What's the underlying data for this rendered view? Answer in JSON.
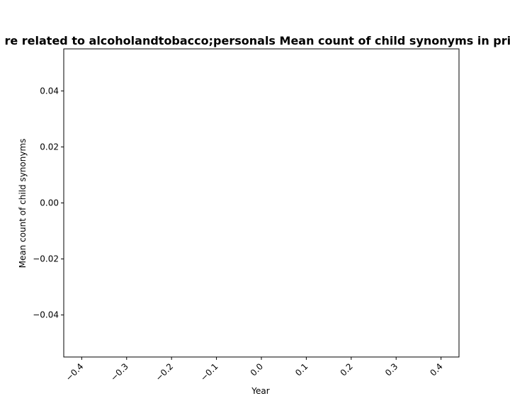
{
  "chart_data": {
    "type": "line",
    "title": "re related to alcoholandtobacco;personals Mean count of child synonyms in priv",
    "xlabel": "Year",
    "ylabel": "Mean count of child synonyms",
    "xlim": [
      -0.44,
      0.44
    ],
    "ylim": [
      -0.055,
      0.055
    ],
    "x_ticks": [
      -0.4,
      -0.3,
      -0.2,
      -0.1,
      0.0,
      0.1,
      0.2,
      0.3,
      0.4
    ],
    "x_tick_labels": [
      "−0.4",
      "−0.3",
      "−0.2",
      "−0.1",
      "0.0",
      "0.1",
      "0.2",
      "0.3",
      "0.4"
    ],
    "y_ticks": [
      0.04,
      0.02,
      0.0,
      -0.02,
      -0.04
    ],
    "y_tick_labels": [
      "0.04",
      "0.02",
      "0.00",
      "−0.02",
      "−0.04"
    ],
    "series": [],
    "grid": false,
    "colors": {
      "axes": "#000000",
      "background": "#ffffff"
    }
  }
}
